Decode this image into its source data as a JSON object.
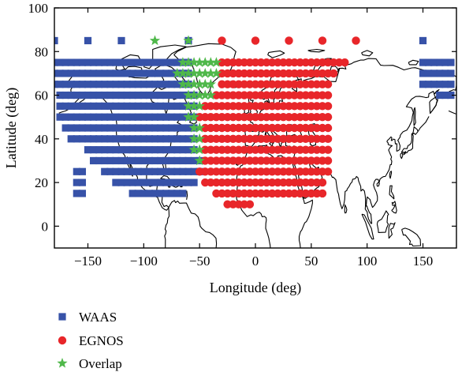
{
  "chart_data": {
    "type": "scatter",
    "title": "",
    "xlabel": "Longitude (deg)",
    "ylabel": "Latitude (deg)",
    "xlim": [
      -180,
      180
    ],
    "ylim": [
      -10,
      100
    ],
    "xticks": [
      -150,
      -100,
      -50,
      0,
      50,
      100,
      150
    ],
    "xtick_labels": [
      "−150",
      "−100",
      "−50",
      "0",
      "50",
      "100",
      "150"
    ],
    "yticks": [
      0,
      20,
      40,
      60,
      80,
      100
    ],
    "ytick_labels": [
      "0",
      "20",
      "40",
      "60",
      "80",
      "100"
    ],
    "grid": false,
    "background_map": "world coastlines",
    "legend_placement": "below-left",
    "grid_step_deg": 5,
    "series": [
      {
        "name": "WAAS",
        "marker": "square",
        "color": "#3752a8",
        "rows": [
          {
            "lat": 85,
            "lon_values": [
              -180,
              -150,
              -120,
              -60,
              150
            ]
          },
          {
            "lat": 75,
            "lon_ranges": [
              [
                -180,
                -60
              ],
              [
                150,
                175
              ]
            ]
          },
          {
            "lat": 70,
            "lon_ranges": [
              [
                -180,
                -60
              ],
              [
                150,
                175
              ]
            ]
          },
          {
            "lat": 65,
            "lon_ranges": [
              [
                -180,
                -60
              ],
              [
                150,
                175
              ]
            ]
          },
          {
            "lat": 60,
            "lon_ranges": [
              [
                -175,
                -55
              ],
              [
                165,
                175
              ]
            ]
          },
          {
            "lat": 55,
            "lon_ranges": [
              [
                -175,
                -55
              ]
            ]
          },
          {
            "lat": 50,
            "lon_ranges": [
              [
                -175,
                -55
              ]
            ]
          },
          {
            "lat": 45,
            "lon_ranges": [
              [
                -170,
                -55
              ]
            ]
          },
          {
            "lat": 40,
            "lon_ranges": [
              [
                -165,
                -55
              ]
            ]
          },
          {
            "lat": 35,
            "lon_ranges": [
              [
                -150,
                -55
              ]
            ]
          },
          {
            "lat": 30,
            "lon_ranges": [
              [
                -145,
                -50
              ]
            ]
          },
          {
            "lat": 25,
            "lon_values": [
              -160,
              -155
            ],
            "lon_ranges": [
              [
                -135,
                -50
              ]
            ]
          },
          {
            "lat": 20,
            "lon_values": [
              -160,
              -155
            ],
            "lon_ranges": [
              [
                -125,
                -55
              ]
            ]
          },
          {
            "lat": 15,
            "lon_values": [
              -160,
              -155
            ],
            "lon_ranges": [
              [
                -110,
                -65
              ]
            ]
          }
        ]
      },
      {
        "name": "EGNOS",
        "marker": "circle",
        "color": "#e8262a",
        "rows": [
          {
            "lat": 85,
            "lon_values": [
              -30,
              0,
              30,
              60,
              90
            ]
          },
          {
            "lat": 75,
            "lon_ranges": [
              [
                -30,
                80
              ]
            ]
          },
          {
            "lat": 70,
            "lon_ranges": [
              [
                -30,
                70
              ]
            ]
          },
          {
            "lat": 65,
            "lon_ranges": [
              [
                -30,
                65
              ]
            ]
          },
          {
            "lat": 60,
            "lon_ranges": [
              [
                -35,
                65
              ]
            ]
          },
          {
            "lat": 55,
            "lon_ranges": [
              [
                -45,
                65
              ]
            ]
          },
          {
            "lat": 50,
            "lon_ranges": [
              [
                -50,
                65
              ]
            ]
          },
          {
            "lat": 45,
            "lon_ranges": [
              [
                -45,
                65
              ]
            ]
          },
          {
            "lat": 40,
            "lon_ranges": [
              [
                -45,
                65
              ]
            ]
          },
          {
            "lat": 35,
            "lon_ranges": [
              [
                -45,
                65
              ]
            ]
          },
          {
            "lat": 30,
            "lon_ranges": [
              [
                -45,
                65
              ]
            ]
          },
          {
            "lat": 25,
            "lon_ranges": [
              [
                -50,
                65
              ]
            ]
          },
          {
            "lat": 20,
            "lon_ranges": [
              [
                -45,
                60
              ]
            ]
          },
          {
            "lat": 15,
            "lon_ranges": [
              [
                -35,
                60
              ]
            ]
          },
          {
            "lat": 10,
            "lon_ranges": [
              [
                -25,
                -5
              ]
            ]
          }
        ]
      },
      {
        "name": "Overlap",
        "marker": "star",
        "color": "#4fb84a",
        "rows": [
          {
            "lat": 85,
            "lon_values": [
              -90,
              -60
            ]
          },
          {
            "lat": 75,
            "lon_ranges": [
              [
                -65,
                -35
              ]
            ]
          },
          {
            "lat": 70,
            "lon_ranges": [
              [
                -70,
                -35
              ]
            ]
          },
          {
            "lat": 65,
            "lon_ranges": [
              [
                -65,
                -40
              ]
            ]
          },
          {
            "lat": 60,
            "lon_ranges": [
              [
                -60,
                -40
              ]
            ]
          },
          {
            "lat": 55,
            "lon_ranges": [
              [
                -60,
                -50
              ]
            ]
          },
          {
            "lat": 50,
            "lon_ranges": [
              [
                -60,
                -55
              ]
            ]
          },
          {
            "lat": 45,
            "lon_ranges": [
              [
                -55,
                -50
              ]
            ]
          },
          {
            "lat": 40,
            "lon_ranges": [
              [
                -55,
                -50
              ]
            ]
          },
          {
            "lat": 35,
            "lon_ranges": [
              [
                -55,
                -50
              ]
            ]
          },
          {
            "lat": 30,
            "lon_values": [
              -50
            ]
          }
        ]
      }
    ],
    "legend": [
      {
        "label": "WAAS",
        "series": "WAAS"
      },
      {
        "label": "EGNOS",
        "series": "EGNOS"
      },
      {
        "label": "Overlap",
        "series": "Overlap"
      }
    ]
  }
}
